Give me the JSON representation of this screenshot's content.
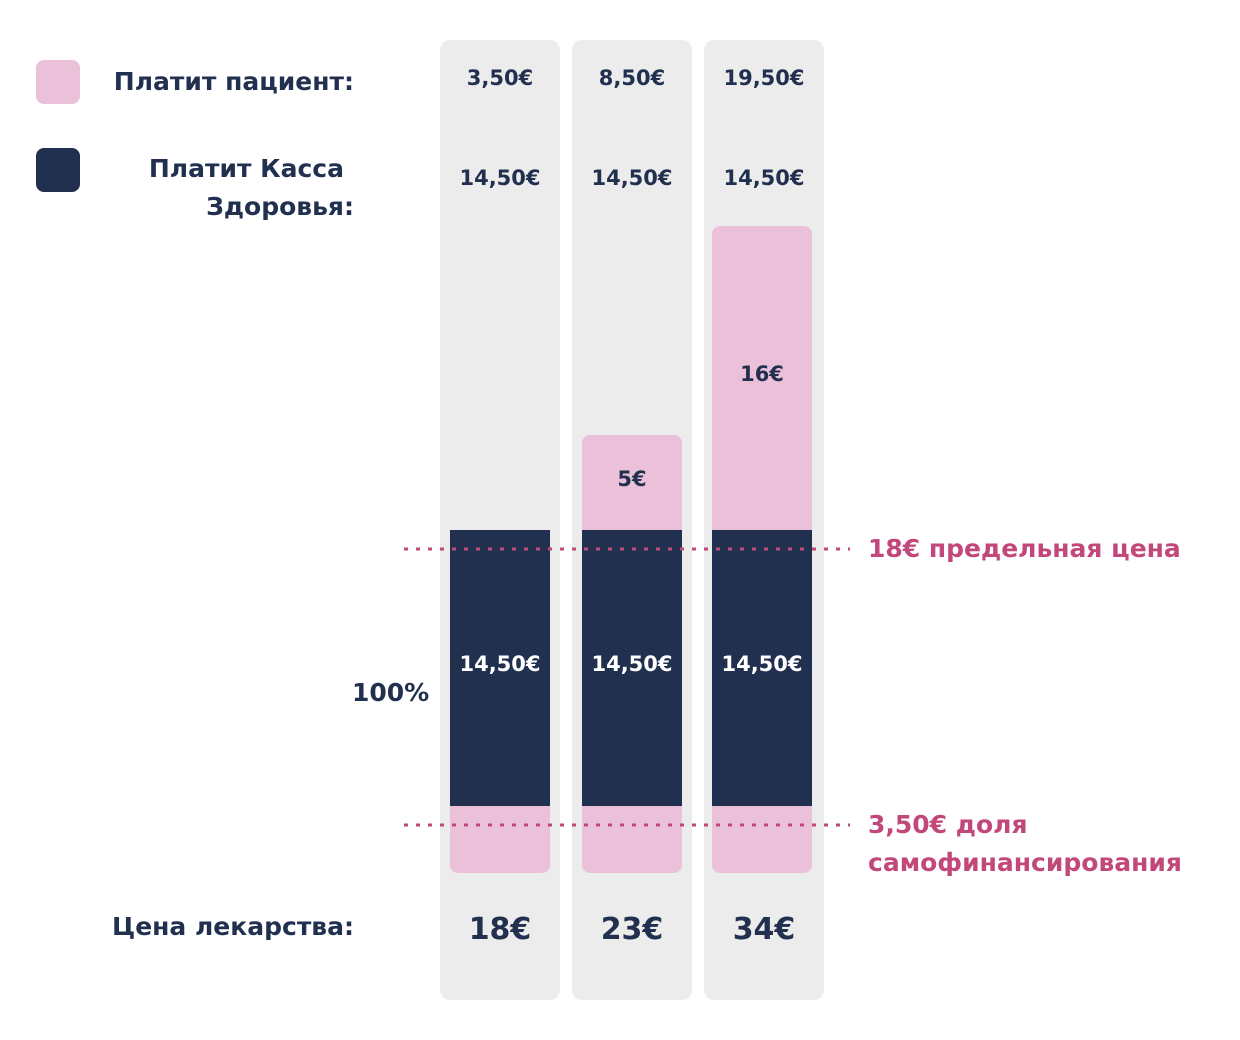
{
  "colors": {
    "patient": "#ebc0d9",
    "fund": "#22304f",
    "column_bg": "#ececec",
    "annotation": "#c2477a",
    "text": "#22304f"
  },
  "legend": {
    "patient_label": "Платит пациент:",
    "fund_label_line1": "Платит Касса",
    "fund_label_line2": "Здоровья:"
  },
  "price_row_label": "Цена лекарства:",
  "percent_label": "100%",
  "annotations": {
    "ceiling": "18€ предельная цена",
    "copay_line1": "3,50€ доля",
    "copay_line2": "самофинансирования"
  },
  "chart_data": {
    "type": "bar",
    "stacked": true,
    "categories": [
      "18€",
      "23€",
      "34€"
    ],
    "drug_price": [
      18,
      23,
      34
    ],
    "patient_pays_label": [
      "3,50€",
      "8,50€",
      "19,50€"
    ],
    "fund_pays_label": [
      "14,50€",
      "14,50€",
      "14,50€"
    ],
    "series": [
      {
        "name": "Платит Касса Здоровья",
        "values": [
          14.5,
          14.5,
          14.5
        ],
        "labels": [
          "14,50€",
          "14,50€",
          "14,50€"
        ]
      },
      {
        "name": "Платит пациент",
        "values": [
          0,
          5,
          16
        ],
        "labels": [
          "",
          "5€",
          "16€"
        ]
      }
    ],
    "copay_share": 3.5,
    "reference_lines": [
      {
        "value": 18,
        "label": "18€ предельная цена"
      },
      {
        "value": 3.5,
        "label": "3,50€ доля самофинансирования"
      }
    ]
  }
}
